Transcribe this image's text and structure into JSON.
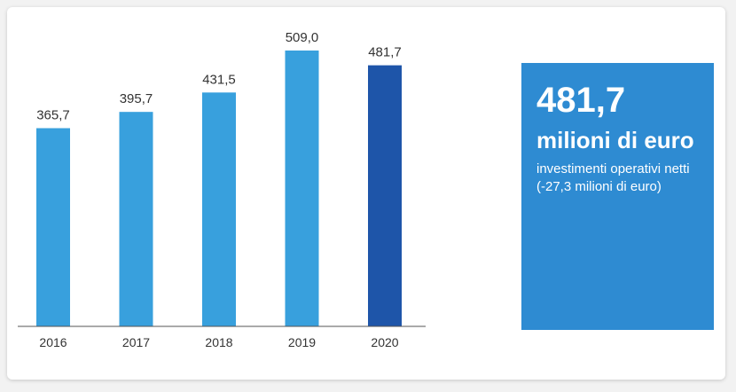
{
  "chart_data": {
    "type": "bar",
    "categories": [
      "2016",
      "2017",
      "2018",
      "2019",
      "2020"
    ],
    "values": [
      365.7,
      395.7,
      431.5,
      509.0,
      481.7
    ],
    "value_labels": [
      "365,7",
      "395,7",
      "431,5",
      "509,0",
      "481,7"
    ],
    "ylim": [
      0,
      540
    ],
    "colors": {
      "default": "#38a0dd",
      "highlight": "#1e55a9",
      "axis": "#555555"
    },
    "highlight_index": 4,
    "grid": false
  },
  "kpi": {
    "value": "481,7",
    "unit": "milioni di euro",
    "description": "investimenti operativi netti (-27,3 milioni di euro)",
    "background": "#2e8bd2"
  }
}
